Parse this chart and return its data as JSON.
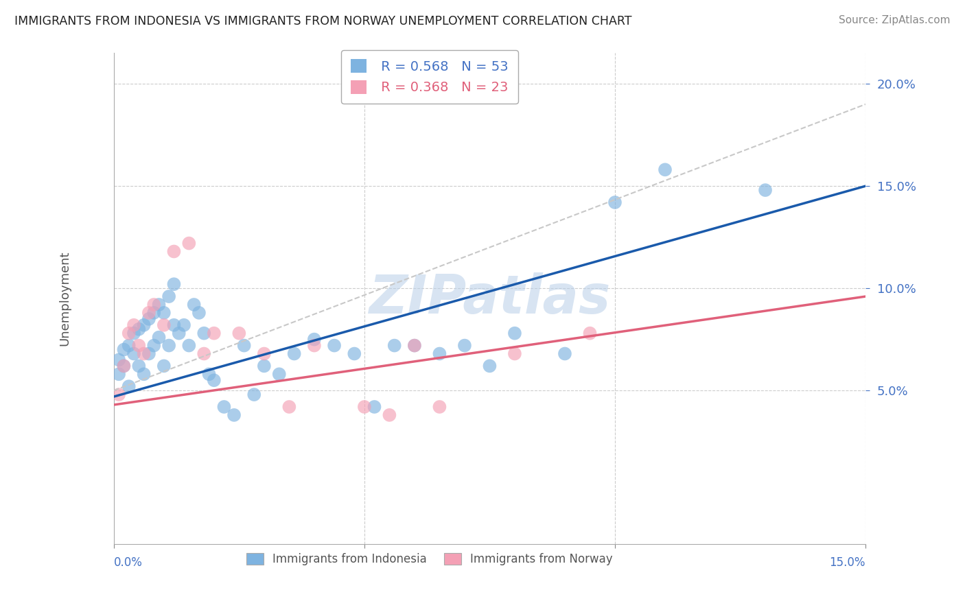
{
  "title": "IMMIGRANTS FROM INDONESIA VS IMMIGRANTS FROM NORWAY UNEMPLOYMENT CORRELATION CHART",
  "source": "Source: ZipAtlas.com",
  "ylabel": "Unemployment",
  "r_indonesia": 0.568,
  "n_indonesia": 53,
  "r_norway": 0.368,
  "n_norway": 23,
  "color_indonesia": "#7eb3e0",
  "color_norway": "#f4a0b5",
  "color_line_indonesia": "#1a5aab",
  "color_line_norway": "#e0607a",
  "color_line_ref": "#c8c8c8",
  "watermark": "ZIPatlas",
  "xlim": [
    0.0,
    0.15
  ],
  "ylim": [
    -0.025,
    0.215
  ],
  "indonesia_x": [
    0.001,
    0.001,
    0.002,
    0.002,
    0.003,
    0.003,
    0.004,
    0.004,
    0.005,
    0.005,
    0.006,
    0.006,
    0.007,
    0.007,
    0.008,
    0.008,
    0.009,
    0.009,
    0.01,
    0.01,
    0.011,
    0.011,
    0.012,
    0.012,
    0.013,
    0.014,
    0.015,
    0.016,
    0.017,
    0.018,
    0.019,
    0.02,
    0.022,
    0.024,
    0.026,
    0.028,
    0.03,
    0.033,
    0.036,
    0.04,
    0.044,
    0.048,
    0.052,
    0.056,
    0.06,
    0.065,
    0.07,
    0.075,
    0.08,
    0.09,
    0.1,
    0.11,
    0.13
  ],
  "indonesia_y": [
    0.058,
    0.065,
    0.062,
    0.07,
    0.052,
    0.072,
    0.068,
    0.078,
    0.062,
    0.08,
    0.058,
    0.082,
    0.068,
    0.085,
    0.072,
    0.088,
    0.076,
    0.092,
    0.062,
    0.088,
    0.072,
    0.096,
    0.082,
    0.102,
    0.078,
    0.082,
    0.072,
    0.092,
    0.088,
    0.078,
    0.058,
    0.055,
    0.042,
    0.038,
    0.072,
    0.048,
    0.062,
    0.058,
    0.068,
    0.075,
    0.072,
    0.068,
    0.042,
    0.072,
    0.072,
    0.068,
    0.072,
    0.062,
    0.078,
    0.068,
    0.142,
    0.158,
    0.148
  ],
  "norway_x": [
    0.001,
    0.002,
    0.003,
    0.004,
    0.005,
    0.006,
    0.007,
    0.008,
    0.01,
    0.012,
    0.015,
    0.018,
    0.02,
    0.025,
    0.03,
    0.035,
    0.04,
    0.05,
    0.055,
    0.06,
    0.065,
    0.08,
    0.095
  ],
  "norway_y": [
    0.048,
    0.062,
    0.078,
    0.082,
    0.072,
    0.068,
    0.088,
    0.092,
    0.082,
    0.118,
    0.122,
    0.068,
    0.078,
    0.078,
    0.068,
    0.042,
    0.072,
    0.042,
    0.038,
    0.072,
    0.042,
    0.068,
    0.078
  ],
  "ind_line_x0": 0.0,
  "ind_line_x1": 0.15,
  "ind_line_y0": 0.047,
  "ind_line_y1": 0.15,
  "nor_line_x0": 0.0,
  "nor_line_x1": 0.15,
  "nor_line_y0": 0.043,
  "nor_line_y1": 0.096,
  "ref_line_x0": 0.0,
  "ref_line_x1": 0.15,
  "ref_line_y0": 0.05,
  "ref_line_y1": 0.19,
  "yticks": [
    0.05,
    0.1,
    0.15,
    0.2
  ],
  "ytick_labels": [
    "5.0%",
    "10.0%",
    "15.0%",
    "20.0%"
  ],
  "xtick_label_left": "0.0%",
  "xtick_label_right": "15.0%"
}
